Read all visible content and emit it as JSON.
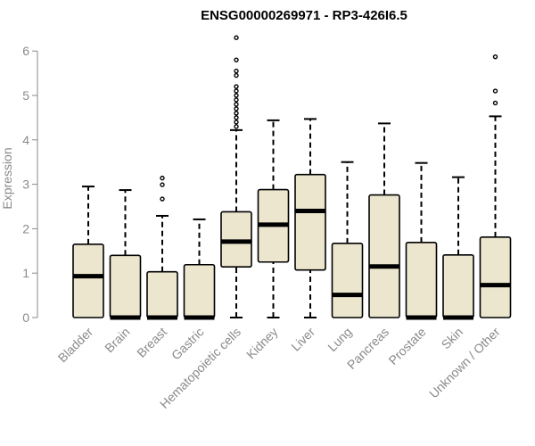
{
  "chart_data": {
    "type": "boxplot",
    "title": "ENSG00000269971 - RP3-426I6.5",
    "xlabel": "",
    "ylabel": "Expression",
    "ylim": [
      0,
      6.3
    ],
    "yticks": [
      0,
      1,
      2,
      3,
      4,
      5,
      6
    ],
    "grid": false,
    "box_fill": "#ede6cf",
    "box_stroke": "#000000",
    "categories": [
      "Bladder",
      "Brain",
      "Breast",
      "Gastric",
      "Hematopoietic cells",
      "Kidney",
      "Liver",
      "Lung",
      "Pancreas",
      "Prostate",
      "Skin",
      "Unknown / Other"
    ],
    "boxes": [
      {
        "whisker_low": 0,
        "q1": 0,
        "median": 0.93,
        "q3": 1.65,
        "whisker_high": 2.95,
        "outliers": []
      },
      {
        "whisker_low": 0,
        "q1": 0,
        "median": 0.0,
        "q3": 1.4,
        "whisker_high": 2.87,
        "outliers": []
      },
      {
        "whisker_low": 0,
        "q1": 0,
        "median": 0.0,
        "q3": 1.03,
        "whisker_high": 2.29,
        "outliers": [
          2.67,
          2.99,
          3.14
        ]
      },
      {
        "whisker_low": 0,
        "q1": 0,
        "median": 0.0,
        "q3": 1.19,
        "whisker_high": 2.21,
        "outliers": []
      },
      {
        "whisker_low": 0,
        "q1": 1.14,
        "median": 1.71,
        "q3": 2.38,
        "whisker_high": 4.22,
        "outliers": [
          4.3,
          4.4,
          4.5,
          4.6,
          4.7,
          4.8,
          4.9,
          5.0,
          5.1,
          5.2,
          5.45,
          5.55,
          5.8,
          6.3
        ]
      },
      {
        "whisker_low": 0,
        "q1": 1.25,
        "median": 2.09,
        "q3": 2.88,
        "whisker_high": 4.44,
        "outliers": []
      },
      {
        "whisker_low": 0,
        "q1": 1.07,
        "median": 2.4,
        "q3": 3.22,
        "whisker_high": 4.47,
        "outliers": []
      },
      {
        "whisker_low": 0,
        "q1": 0,
        "median": 0.51,
        "q3": 1.67,
        "whisker_high": 3.5,
        "outliers": []
      },
      {
        "whisker_low": 0,
        "q1": 0,
        "median": 1.15,
        "q3": 2.76,
        "whisker_high": 4.37,
        "outliers": []
      },
      {
        "whisker_low": 0,
        "q1": 0,
        "median": 0.0,
        "q3": 1.69,
        "whisker_high": 3.48,
        "outliers": []
      },
      {
        "whisker_low": 0,
        "q1": 0,
        "median": 0.0,
        "q3": 1.41,
        "whisker_high": 3.16,
        "outliers": []
      },
      {
        "whisker_low": 0,
        "q1": 0,
        "median": 0.73,
        "q3": 1.81,
        "whisker_high": 4.53,
        "outliers": [
          4.83,
          5.1,
          5.87
        ]
      }
    ]
  }
}
